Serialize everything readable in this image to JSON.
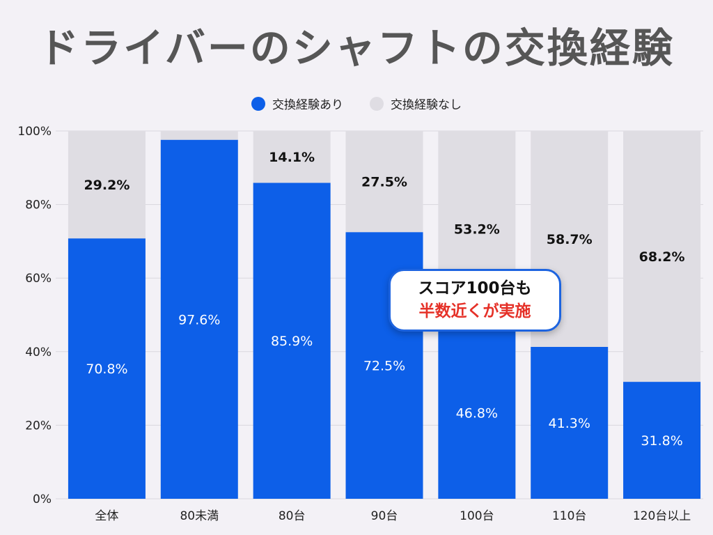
{
  "chart_data": {
    "type": "bar",
    "stacked": true,
    "title": "ドライバーのシャフトの交換経験",
    "categories": [
      "全体",
      "80未満",
      "80台",
      "90台",
      "100台",
      "110台",
      "120台以上"
    ],
    "series": [
      {
        "name": "交換経験あり",
        "color": "#0d5fe8",
        "values": [
          70.8,
          97.6,
          85.9,
          72.5,
          46.8,
          41.3,
          31.8
        ],
        "labels": [
          "70.8%",
          "97.6%",
          "85.9%",
          "72.5%",
          "46.8%",
          "41.3%",
          "31.8%"
        ]
      },
      {
        "name": "交換経験なし",
        "color": "#dfdde3",
        "values": [
          29.2,
          2.4,
          14.1,
          27.5,
          53.2,
          58.7,
          68.2
        ],
        "labels": [
          "29.2%",
          "",
          "14.1%",
          "27.5%",
          "53.2%",
          "58.7%",
          "68.2%"
        ]
      }
    ],
    "y_ticks": [
      "0%",
      "20%",
      "40%",
      "60%",
      "80%",
      "100%"
    ],
    "ylim": [
      0,
      100
    ],
    "grid": true,
    "legend_position": "top-center",
    "annotation": {
      "line1": "スコア100台も",
      "line2": "半数近くが実施",
      "line1_color": "#111111",
      "line2_color": "#e53128",
      "border_color": "#1d64e0"
    }
  }
}
